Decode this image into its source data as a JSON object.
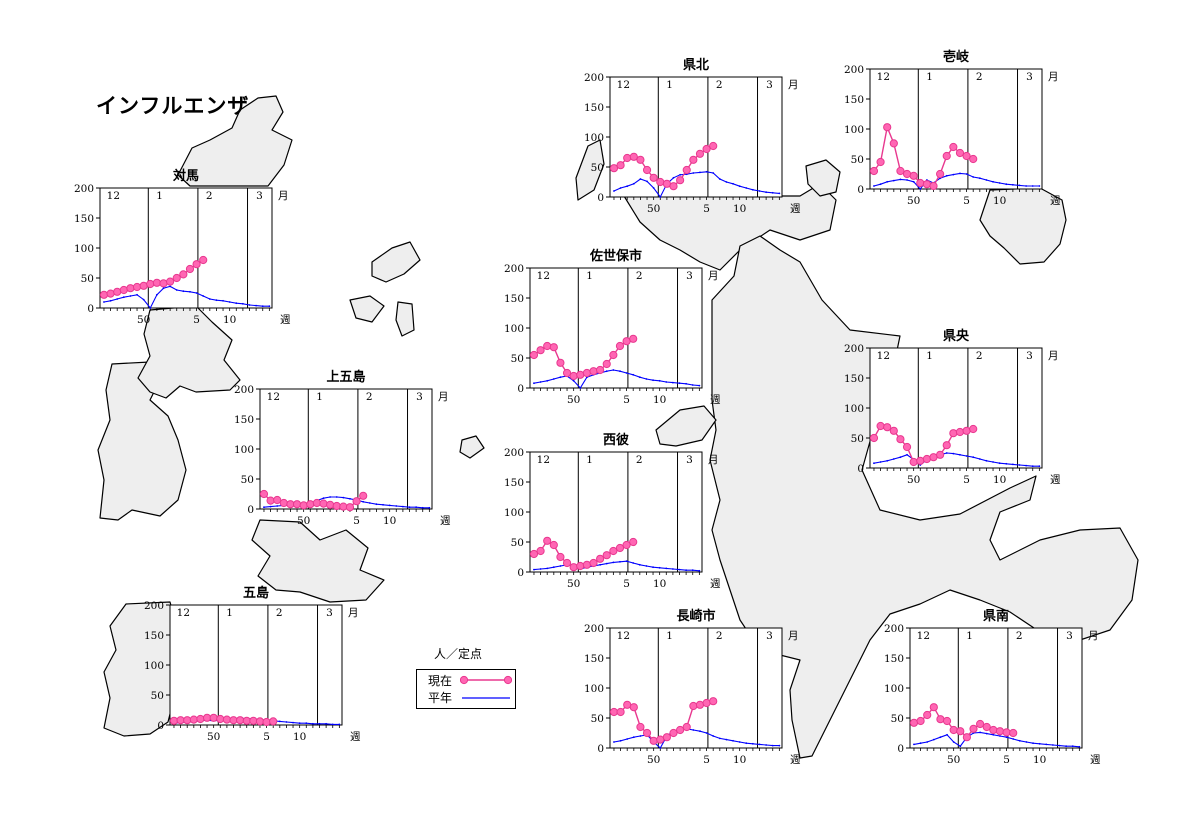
{
  "title": "インフルエンザ",
  "legend": {
    "unit": "人／定点",
    "current_label": "現在",
    "normal_label": "平年",
    "current_color": "#e8388f",
    "current_fill": "#ff66b3",
    "normal_color": "#0000ff"
  },
  "chart_data": [
    {
      "type": "line",
      "region": "対馬",
      "ylim": [
        0,
        200
      ],
      "yticks": [
        0,
        50,
        100,
        150,
        200
      ],
      "month_labels": [
        "12",
        "1",
        "2",
        "3",
        "月"
      ],
      "week_labels": [
        "50",
        "5",
        "10",
        "週"
      ],
      "series": [
        {
          "name": "現在",
          "x": [
            44,
            45,
            46,
            47,
            48,
            49,
            50,
            51,
            52,
            53,
            54,
            55,
            56,
            57,
            58,
            59
          ],
          "y": [
            22,
            24,
            27,
            30,
            33,
            35,
            37,
            40,
            42,
            41,
            44,
            50,
            56,
            65,
            73,
            80
          ]
        },
        {
          "name": "平年",
          "x": [
            44,
            45,
            46,
            47,
            48,
            49,
            50,
            51,
            52,
            53,
            1,
            2,
            3,
            4,
            5,
            6,
            7,
            8,
            9,
            10,
            11,
            12,
            13,
            14,
            15,
            16
          ],
          "y": [
            10,
            12,
            15,
            18,
            20,
            22,
            14,
            0,
            22,
            33,
            36,
            30,
            28,
            27,
            25,
            20,
            15,
            13,
            12,
            10,
            8,
            7,
            5,
            4,
            3,
            3
          ]
        }
      ]
    },
    {
      "type": "line",
      "region": "上五島",
      "ylim": [
        0,
        200
      ],
      "yticks": [
        0,
        50,
        100,
        150,
        200
      ],
      "month_labels": [
        "12",
        "1",
        "2",
        "3",
        "月"
      ],
      "week_labels": [
        "50",
        "5",
        "10",
        "週"
      ],
      "series": [
        {
          "name": "現在",
          "x": [
            44,
            45,
            46,
            47,
            48,
            49,
            50,
            51,
            52,
            53,
            54,
            55,
            56,
            57,
            58,
            59
          ],
          "y": [
            25,
            14,
            15,
            10,
            8,
            8,
            6,
            8,
            10,
            9,
            7,
            5,
            4,
            3,
            13,
            22
          ]
        },
        {
          "name": "平年",
          "x": [
            44,
            45,
            46,
            47,
            48,
            49,
            50,
            51,
            52,
            53,
            1,
            2,
            3,
            4,
            5,
            6,
            7,
            8,
            9,
            10,
            11,
            12,
            13,
            14,
            15,
            16
          ],
          "y": [
            3,
            4,
            5,
            6,
            6,
            7,
            6,
            9,
            14,
            18,
            20,
            20,
            19,
            17,
            15,
            12,
            10,
            8,
            7,
            6,
            5,
            4,
            3,
            3,
            2,
            2
          ]
        }
      ]
    },
    {
      "type": "line",
      "region": "五島",
      "ylim": [
        0,
        200
      ],
      "yticks": [
        0,
        50,
        100,
        150,
        200
      ],
      "month_labels": [
        "12",
        "1",
        "2",
        "3",
        "月"
      ],
      "week_labels": [
        "50",
        "5",
        "10",
        "週"
      ],
      "series": [
        {
          "name": "現在",
          "x": [
            44,
            45,
            46,
            47,
            48,
            49,
            50,
            51,
            52,
            53,
            54,
            55,
            56,
            57,
            58,
            59
          ],
          "y": [
            7,
            8,
            8,
            9,
            10,
            12,
            12,
            10,
            9,
            8,
            8,
            7,
            7,
            6,
            5,
            6
          ]
        },
        {
          "name": "平年",
          "x": [
            44,
            45,
            46,
            47,
            48,
            49,
            50,
            51,
            52,
            53,
            1,
            2,
            3,
            4,
            5,
            6,
            7,
            8,
            9,
            10,
            11,
            12,
            13,
            14,
            15,
            16
          ],
          "y": [
            3,
            4,
            5,
            6,
            7,
            8,
            7,
            8,
            9,
            10,
            11,
            11,
            10,
            9,
            8,
            7,
            6,
            5,
            4,
            3,
            3,
            2,
            2,
            2,
            1,
            1
          ]
        }
      ]
    },
    {
      "type": "line",
      "region": "県北",
      "ylim": [
        0,
        200
      ],
      "yticks": [
        0,
        50,
        100,
        150,
        200
      ],
      "month_labels": [
        "12",
        "1",
        "2",
        "3",
        "月"
      ],
      "week_labels": [
        "50",
        "5",
        "10",
        "週"
      ],
      "series": [
        {
          "name": "現在",
          "x": [
            44,
            45,
            46,
            47,
            48,
            49,
            50,
            51,
            52,
            53,
            54,
            55,
            56,
            57,
            58,
            59
          ],
          "y": [
            48,
            53,
            65,
            67,
            62,
            45,
            32,
            25,
            22,
            18,
            28,
            45,
            62,
            72,
            80,
            85
          ]
        },
        {
          "name": "平年",
          "x": [
            44,
            45,
            46,
            47,
            48,
            49,
            50,
            51,
            52,
            53,
            1,
            2,
            3,
            4,
            5,
            6,
            7,
            8,
            9,
            10,
            11,
            12,
            13,
            14,
            15,
            16
          ],
          "y": [
            10,
            15,
            18,
            22,
            30,
            26,
            15,
            0,
            22,
            32,
            37,
            38,
            40,
            41,
            42,
            40,
            30,
            25,
            22,
            18,
            15,
            12,
            10,
            8,
            7,
            6
          ]
        }
      ]
    },
    {
      "type": "line",
      "region": "佐世保市",
      "ylim": [
        0,
        200
      ],
      "yticks": [
        0,
        50,
        100,
        150,
        200
      ],
      "month_labels": [
        "12",
        "1",
        "2",
        "3",
        "月"
      ],
      "week_labels": [
        "50",
        "5",
        "10",
        "週"
      ],
      "series": [
        {
          "name": "現在",
          "x": [
            44,
            45,
            46,
            47,
            48,
            49,
            50,
            51,
            52,
            53,
            54,
            55,
            56,
            57,
            58,
            59
          ],
          "y": [
            55,
            63,
            70,
            68,
            42,
            25,
            20,
            22,
            25,
            28,
            30,
            40,
            55,
            70,
            78,
            82
          ]
        },
        {
          "name": "平年",
          "x": [
            44,
            45,
            46,
            47,
            48,
            49,
            50,
            51,
            52,
            53,
            1,
            2,
            3,
            4,
            5,
            6,
            7,
            8,
            9,
            10,
            11,
            12,
            13,
            14,
            15,
            16
          ],
          "y": [
            8,
            10,
            12,
            15,
            18,
            20,
            12,
            0,
            18,
            22,
            25,
            28,
            30,
            28,
            25,
            22,
            18,
            15,
            13,
            12,
            10,
            9,
            8,
            7,
            5,
            4
          ]
        }
      ]
    },
    {
      "type": "line",
      "region": "西彼",
      "ylim": [
        0,
        200
      ],
      "yticks": [
        0,
        50,
        100,
        150,
        200
      ],
      "month_labels": [
        "12",
        "1",
        "2",
        "3",
        "月"
      ],
      "week_labels": [
        "50",
        "5",
        "10",
        "週"
      ],
      "series": [
        {
          "name": "現在",
          "x": [
            44,
            45,
            46,
            47,
            48,
            49,
            50,
            51,
            52,
            53,
            54,
            55,
            56,
            57,
            58,
            59
          ],
          "y": [
            30,
            35,
            52,
            45,
            25,
            15,
            8,
            10,
            12,
            15,
            22,
            28,
            35,
            40,
            45,
            50
          ]
        },
        {
          "name": "平年",
          "x": [
            44,
            45,
            46,
            47,
            48,
            49,
            50,
            51,
            52,
            53,
            1,
            2,
            3,
            4,
            5,
            6,
            7,
            8,
            9,
            10,
            11,
            12,
            13,
            14,
            15,
            16
          ],
          "y": [
            4,
            5,
            6,
            8,
            10,
            12,
            10,
            5,
            8,
            10,
            12,
            14,
            16,
            17,
            18,
            15,
            12,
            10,
            8,
            7,
            6,
            5,
            4,
            3,
            3,
            2
          ]
        }
      ]
    },
    {
      "type": "line",
      "region": "壱岐",
      "ylim": [
        0,
        200
      ],
      "yticks": [
        0,
        50,
        100,
        150,
        200
      ],
      "month_labels": [
        "12",
        "1",
        "2",
        "3",
        "月"
      ],
      "week_labels": [
        "50",
        "5",
        "10",
        "週"
      ],
      "series": [
        {
          "name": "現在",
          "x": [
            44,
            45,
            46,
            47,
            48,
            49,
            50,
            51,
            52,
            53,
            54,
            55,
            56,
            57,
            58,
            59
          ],
          "y": [
            30,
            45,
            103,
            76,
            30,
            25,
            22,
            10,
            8,
            5,
            25,
            55,
            70,
            60,
            55,
            50
          ]
        },
        {
          "name": "平年",
          "x": [
            44,
            45,
            46,
            47,
            48,
            49,
            50,
            51,
            52,
            53,
            1,
            2,
            3,
            4,
            5,
            6,
            7,
            8,
            9,
            10,
            11,
            12,
            13,
            14,
            15,
            16
          ],
          "y": [
            5,
            8,
            12,
            14,
            16,
            15,
            12,
            0,
            15,
            10,
            18,
            22,
            24,
            26,
            25,
            20,
            18,
            15,
            12,
            10,
            8,
            7,
            6,
            5,
            5,
            5
          ]
        }
      ]
    },
    {
      "type": "line",
      "region": "県央",
      "ylim": [
        0,
        200
      ],
      "yticks": [
        0,
        50,
        100,
        150,
        200
      ],
      "month_labels": [
        "12",
        "1",
        "2",
        "3",
        "月"
      ],
      "week_labels": [
        "50",
        "5",
        "10",
        "週"
      ],
      "series": [
        {
          "name": "現在",
          "x": [
            44,
            45,
            46,
            47,
            48,
            49,
            50,
            51,
            52,
            53,
            54,
            55,
            56,
            57,
            58,
            59
          ],
          "y": [
            50,
            70,
            68,
            62,
            48,
            35,
            10,
            12,
            15,
            18,
            22,
            38,
            58,
            60,
            62,
            65
          ]
        },
        {
          "name": "平年",
          "x": [
            44,
            45,
            46,
            47,
            48,
            49,
            50,
            51,
            52,
            53,
            1,
            2,
            3,
            4,
            5,
            6,
            7,
            8,
            9,
            10,
            11,
            12,
            13,
            14,
            15,
            16
          ],
          "y": [
            8,
            10,
            12,
            15,
            18,
            22,
            14,
            5,
            14,
            18,
            22,
            25,
            24,
            22,
            20,
            18,
            15,
            12,
            10,
            8,
            7,
            6,
            5,
            4,
            3,
            3
          ]
        }
      ]
    },
    {
      "type": "line",
      "region": "長崎市",
      "ylim": [
        0,
        200
      ],
      "yticks": [
        0,
        50,
        100,
        150,
        200
      ],
      "month_labels": [
        "12",
        "1",
        "2",
        "3",
        "月"
      ],
      "week_labels": [
        "50",
        "5",
        "10",
        "週"
      ],
      "series": [
        {
          "name": "現在",
          "x": [
            44,
            45,
            46,
            47,
            48,
            49,
            50,
            51,
            52,
            53,
            54,
            55,
            56,
            57,
            58,
            59
          ],
          "y": [
            60,
            60,
            72,
            68,
            35,
            25,
            12,
            14,
            18,
            25,
            30,
            35,
            70,
            72,
            75,
            78
          ]
        },
        {
          "name": "平年",
          "x": [
            44,
            45,
            46,
            47,
            48,
            49,
            50,
            51,
            52,
            53,
            1,
            2,
            3,
            4,
            5,
            6,
            7,
            8,
            9,
            10,
            11,
            12,
            13,
            14,
            15,
            16
          ],
          "y": [
            10,
            12,
            15,
            18,
            20,
            22,
            10,
            0,
            20,
            28,
            30,
            32,
            30,
            28,
            25,
            20,
            16,
            14,
            12,
            10,
            8,
            7,
            6,
            5,
            4,
            4
          ]
        }
      ]
    },
    {
      "type": "line",
      "region": "県南",
      "ylim": [
        0,
        200
      ],
      "yticks": [
        0,
        50,
        100,
        150,
        200
      ],
      "month_labels": [
        "12",
        "1",
        "2",
        "3",
        "月"
      ],
      "week_labels": [
        "50",
        "5",
        "10",
        "週"
      ],
      "series": [
        {
          "name": "現在",
          "x": [
            44,
            45,
            46,
            47,
            48,
            49,
            50,
            51,
            52,
            53,
            54,
            55,
            56,
            57,
            58,
            59
          ],
          "y": [
            42,
            45,
            55,
            68,
            48,
            45,
            30,
            28,
            18,
            32,
            40,
            35,
            30,
            28,
            26,
            25
          ]
        },
        {
          "name": "平年",
          "x": [
            44,
            45,
            46,
            47,
            48,
            49,
            50,
            51,
            52,
            53,
            1,
            2,
            3,
            4,
            5,
            6,
            7,
            8,
            9,
            10,
            11,
            12,
            13,
            14,
            15,
            16
          ],
          "y": [
            6,
            8,
            10,
            14,
            18,
            22,
            10,
            3,
            18,
            25,
            26,
            24,
            22,
            20,
            18,
            15,
            12,
            10,
            8,
            7,
            6,
            5,
            4,
            3,
            3,
            2
          ]
        }
      ]
    }
  ]
}
